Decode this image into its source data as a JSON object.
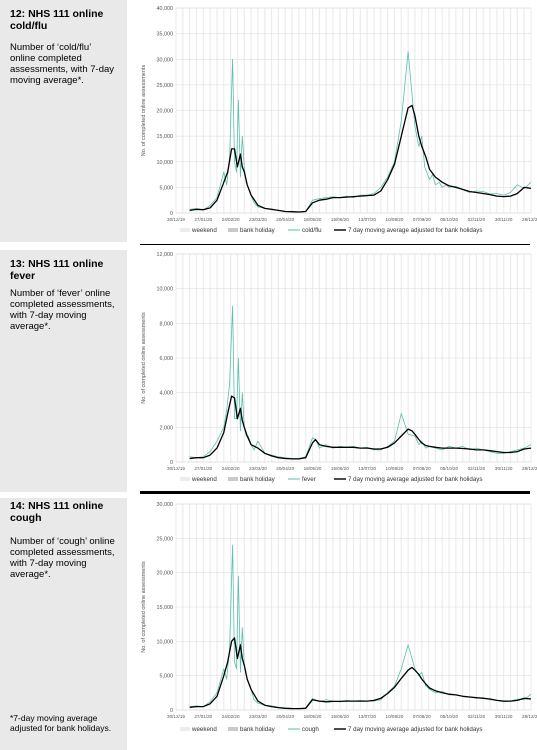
{
  "panels": [
    {
      "title": "12: NHS 111 online cold/flu",
      "desc": "Number of ‘cold/flu’ online completed assessments, with 7-day moving average*.",
      "chart": {
        "type": "line",
        "ylabel": "No. of completed online assessments",
        "ylim": [
          0,
          40000
        ],
        "yticks": [
          "0",
          "5,000",
          "10,000",
          "15,000",
          "20,000",
          "25,000",
          "30,000",
          "35,000",
          "40,000"
        ],
        "ystep": 5000,
        "xticks": [
          "30/12/19",
          "27/01/20",
          "24/02/20",
          "23/03/20",
          "20/04/20",
          "18/05/20",
          "15/06/20",
          "13/07/20",
          "10/08/20",
          "07/09/20",
          "05/10/20",
          "02/11/20",
          "30/11/20",
          "28/12/20"
        ],
        "legend": [
          "weekend",
          "bank holiday",
          "cold/flu",
          "7 day moving average adjusted for bank holidays"
        ],
        "series": [
          {
            "name": "cold/flu",
            "color": "#5bbfae",
            "x": [
              14,
              21,
              28,
              35,
              42,
              49,
              52,
              55,
              58,
              60,
              62,
              64,
              66,
              68,
              70,
              72,
              74,
              77,
              80,
              84,
              91,
              98,
              105,
              112,
              119,
              126,
              133,
              140,
              147,
              154,
              161,
              168,
              175,
              182,
              189,
              196,
              203,
              210,
              217,
              224,
              231,
              238,
              245,
              249,
              252,
              255,
              257,
              260,
              263,
              266,
              270,
              273,
              277,
              280,
              287,
              294,
              301,
              308,
              315,
              322,
              329,
              336,
              343,
              350,
              357,
              364
            ],
            "y": [
              700,
              900,
              600,
              1500,
              3000,
              8000,
              5500,
              11000,
              30000,
              10000,
              8000,
              22000,
              7000,
              15000,
              9000,
              6000,
              5000,
              3500,
              2000,
              1200,
              900,
              800,
              500,
              300,
              250,
              200,
              300,
              2500,
              2800,
              3000,
              3200,
              3000,
              3300,
              3000,
              3500,
              3500,
              3800,
              5000,
              7000,
              10000,
              18000,
              31500,
              17000,
              13000,
              15000,
              9000,
              8000,
              6500,
              7500,
              5500,
              6000,
              5000,
              5500,
              5000,
              5200,
              4500,
              4000,
              4300,
              4200,
              3700,
              3800,
              3500,
              4000,
              5500,
              4800,
              6000
            ]
          },
          {
            "name": "7 day moving average adjusted for bank holidays",
            "color": "#000000",
            "x": [
              14,
              21,
              28,
              35,
              42,
              49,
              53,
              57,
              60,
              63,
              66,
              68,
              70,
              73,
              77,
              84,
              91,
              98,
              105,
              112,
              119,
              126,
              133,
              140,
              147,
              154,
              161,
              168,
              175,
              182,
              189,
              196,
              203,
              210,
              217,
              224,
              231,
              238,
              242,
              245,
              249,
              252,
              256,
              260,
              266,
              273,
              280,
              287,
              294,
              301,
              308,
              315,
              322,
              329,
              336,
              343,
              350,
              357,
              364
            ],
            "y": [
              500,
              700,
              650,
              1000,
              2500,
              6000,
              8000,
              12500,
              12500,
              9000,
              11500,
              9000,
              8000,
              5500,
              3500,
              1500,
              900,
              700,
              500,
              300,
              250,
              200,
              300,
              2000,
              2500,
              2700,
              3000,
              3000,
              3100,
              3200,
              3300,
              3400,
              3500,
              4300,
              6500,
              9500,
              15000,
              20500,
              21000,
              19000,
              15000,
              13000,
              11000,
              8500,
              7000,
              6000,
              5300,
              5000,
              4600,
              4200,
              4000,
              3800,
              3600,
              3300,
              3200,
              3300,
              3800,
              5000,
              4800
            ]
          }
        ]
      }
    },
    {
      "title": "13: NHS 111 online fever",
      "desc": "Number of ‘fever’ online completed assessments, with 7-day moving average*.",
      "chart": {
        "type": "line",
        "ylabel": "No. of completed online assessments",
        "ylim": [
          0,
          12000
        ],
        "yticks": [
          "0",
          "2,000",
          "4,000",
          "6,000",
          "8,000",
          "10,000",
          "12,000"
        ],
        "ystep": 2000,
        "xticks": [
          "30/12/19",
          "27/01/20",
          "24/02/20",
          "23/03/20",
          "20/04/20",
          "18/05/20",
          "15/06/20",
          "13/07/20",
          "10/08/20",
          "07/09/20",
          "05/10/20",
          "02/11/20",
          "30/11/20",
          "28/12/20"
        ],
        "legend": [
          "weekend",
          "bank holiday",
          "fever",
          "7 day moving average adjusted for bank holidays"
        ],
        "series": [
          {
            "name": "fever",
            "color": "#5bbfae",
            "x": [
              14,
              21,
              28,
              35,
              42,
              49,
              52,
              55,
              58,
              60,
              62,
              64,
              66,
              68,
              70,
              72,
              74,
              77,
              80,
              84,
              91,
              98,
              105,
              112,
              119,
              126,
              133,
              140,
              143,
              147,
              154,
              161,
              168,
              175,
              182,
              189,
              196,
              203,
              210,
              217,
              224,
              231,
              238,
              245,
              249,
              252,
              256,
              260,
              266,
              273,
              280,
              287,
              294,
              301,
              308,
              315,
              322,
              329,
              336,
              343,
              350,
              357,
              364
            ],
            "y": [
              300,
              250,
              300,
              600,
              1200,
              2000,
              3000,
              4500,
              9000,
              2500,
              2500,
              6000,
              1800,
              4000,
              2000,
              1500,
              1500,
              1000,
              700,
              1200,
              500,
              400,
              300,
              250,
              200,
              200,
              300,
              1400,
              1300,
              800,
              1000,
              800,
              900,
              850,
              900,
              800,
              850,
              700,
              700,
              900,
              1200,
              2800,
              1600,
              1500,
              1000,
              1200,
              800,
              900,
              800,
              700,
              900,
              800,
              900,
              700,
              800,
              700,
              600,
              500,
              500,
              600,
              700,
              800,
              1000
            ]
          },
          {
            "name": "7 day moving average adjusted for bank holidays",
            "color": "#000000",
            "x": [
              14,
              21,
              28,
              35,
              42,
              49,
              53,
              57,
              60,
              63,
              66,
              68,
              70,
              73,
              77,
              84,
              91,
              98,
              105,
              112,
              119,
              126,
              133,
              140,
              143,
              147,
              154,
              161,
              168,
              175,
              182,
              189,
              196,
              203,
              210,
              217,
              224,
              231,
              238,
              242,
              245,
              249,
              252,
              256,
              260,
              266,
              273,
              280,
              287,
              294,
              301,
              308,
              315,
              322,
              329,
              336,
              343,
              350,
              357,
              364
            ],
            "y": [
              200,
              250,
              250,
              400,
              800,
              1700,
              2800,
              3800,
              3700,
              2500,
              3100,
              2400,
              2000,
              1500,
              1000,
              800,
              500,
              350,
              250,
              200,
              180,
              180,
              250,
              1100,
              1300,
              1000,
              900,
              850,
              850,
              850,
              850,
              800,
              800,
              750,
              750,
              850,
              1100,
              1500,
              1900,
              1800,
              1600,
              1300,
              1100,
              950,
              900,
              850,
              800,
              800,
              800,
              780,
              750,
              700,
              700,
              650,
              600,
              550,
              550,
              600,
              750,
              800
            ]
          }
        ]
      }
    },
    {
      "title": "14: NHS 111 online cough",
      "desc": "Number of ‘cough’ online completed assessments, with 7-day moving average*.",
      "chart": {
        "type": "line",
        "ylabel": "No. of completed online assessments",
        "ylim": [
          0,
          30000
        ],
        "yticks": [
          "0",
          "5,000",
          "10,000",
          "15,000",
          "20,000",
          "25,000",
          "30,000"
        ],
        "ystep": 5000,
        "xticks": [
          "30/12/19",
          "27/01/20",
          "24/02/20",
          "23/03/20",
          "20/04/20",
          "18/05/20",
          "15/06/20",
          "13/07/20",
          "10/08/20",
          "07/09/20",
          "05/10/20",
          "02/11/20",
          "30/11/20",
          "28/12/20"
        ],
        "legend": [
          "weekend",
          "bank holiday",
          "cough",
          "7 day moving average adjusted for bank holidays"
        ],
        "series": [
          {
            "name": "cough",
            "color": "#5bbfae",
            "x": [
              14,
              21,
              28,
              35,
              42,
              49,
              52,
              55,
              58,
              60,
              62,
              64,
              66,
              68,
              70,
              72,
              74,
              77,
              80,
              84,
              91,
              98,
              105,
              112,
              119,
              126,
              133,
              140,
              147,
              154,
              161,
              168,
              175,
              182,
              189,
              196,
              203,
              210,
              217,
              224,
              231,
              238,
              245,
              249,
              252,
              256,
              260,
              266,
              273,
              280,
              287,
              294,
              301,
              308,
              315,
              322,
              329,
              336,
              343,
              350,
              357,
              364
            ],
            "y": [
              500,
              600,
              500,
              1200,
              2500,
              6000,
              4500,
              9000,
              24000,
              7000,
              6000,
              19500,
              5500,
              12000,
              6500,
              5000,
              4000,
              3000,
              1500,
              1000,
              700,
              600,
              400,
              300,
              250,
              200,
              300,
              1700,
              1200,
              1500,
              1300,
              1200,
              1400,
              1300,
              1400,
              1300,
              1300,
              1500,
              2500,
              3500,
              6000,
              9500,
              6000,
              5000,
              5500,
              3500,
              3000,
              2500,
              2700,
              2200,
              2200,
              2000,
              1900,
              1700,
              1800,
              1500,
              1400,
              1200,
              1300,
              1600,
              1500,
              2300
            ]
          },
          {
            "name": "7 day moving average adjusted for bank holidays",
            "color": "#000000",
            "x": [
              14,
              21,
              28,
              35,
              42,
              49,
              53,
              57,
              60,
              63,
              66,
              68,
              70,
              73,
              77,
              84,
              91,
              98,
              105,
              112,
              119,
              126,
              133,
              140,
              147,
              154,
              161,
              168,
              175,
              182,
              189,
              196,
              203,
              210,
              217,
              224,
              231,
              238,
              242,
              245,
              249,
              252,
              256,
              260,
              266,
              273,
              280,
              287,
              294,
              301,
              308,
              315,
              322,
              329,
              336,
              343,
              350,
              357,
              364
            ],
            "y": [
              400,
              500,
              500,
              900,
              2000,
              5000,
              7000,
              10000,
              10500,
              7500,
              9500,
              7500,
              6500,
              4500,
              3000,
              1300,
              700,
              500,
              350,
              250,
              200,
              200,
              250,
              1500,
              1300,
              1200,
              1250,
              1250,
              1300,
              1300,
              1300,
              1300,
              1400,
              1700,
              2400,
              3300,
              4600,
              5800,
              6200,
              5800,
              5200,
              4500,
              3800,
              3200,
              2800,
              2500,
              2300,
              2200,
              2000,
              1900,
              1800,
              1700,
              1600,
              1400,
              1300,
              1300,
              1400,
              1700,
              1600
            ]
          }
        ]
      }
    }
  ],
  "footnote": "*7-day moving average adjusted for bank holidays."
}
